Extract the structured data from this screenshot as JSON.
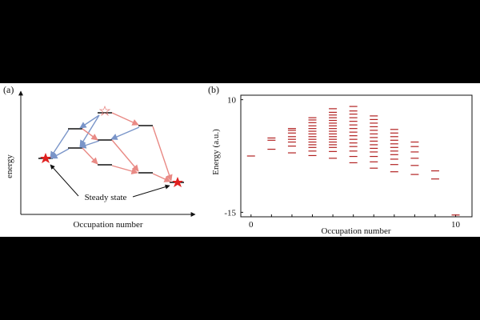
{
  "panel_a": {
    "label": "(a)",
    "ylabel": "energy",
    "xlabel": "Occupation number",
    "annotation": "Steady state"
  },
  "chart_data": {
    "type": "scatter",
    "label": "(b)",
    "xlabel": "Occupation number",
    "ylabel": "Energy (a.u.)",
    "xticks": [
      0,
      10
    ],
    "yticks": [
      10,
      -15
    ],
    "xlim": [
      -0.5,
      10.8
    ],
    "ylim": [
      -16,
      11
    ],
    "color": "#b22222",
    "series": [
      {
        "n": 0,
        "energies": [
          -2.5
        ]
      },
      {
        "n": 1,
        "energies": [
          1.5,
          1.0,
          -1.0
        ]
      },
      {
        "n": 2,
        "energies": [
          3.6,
          3.2,
          2.6,
          1.8,
          1.2,
          0.6,
          -0.3,
          -1.8
        ]
      },
      {
        "n": 3,
        "energies": [
          6.0,
          5.5,
          4.9,
          4.2,
          3.6,
          3.0,
          2.4,
          1.8,
          1.2,
          0.6,
          0.0,
          -0.6,
          -1.4,
          -2.4
        ]
      },
      {
        "n": 4,
        "energies": [
          8.0,
          7.2,
          6.6,
          6.0,
          5.4,
          4.8,
          4.2,
          3.6,
          3.0,
          2.4,
          1.8,
          1.2,
          0.6,
          0.0,
          -0.6,
          -1.5,
          -3.0
        ]
      },
      {
        "n": 5,
        "energies": [
          8.5,
          7.5,
          6.8,
          6.0,
          5.2,
          4.4,
          3.6,
          2.8,
          2.0,
          1.2,
          0.4,
          -0.4,
          -1.4,
          -2.6,
          -4.0
        ]
      },
      {
        "n": 6,
        "energies": [
          6.4,
          5.6,
          4.8,
          4.0,
          3.2,
          2.4,
          1.6,
          0.8,
          0.0,
          -0.8,
          -1.6,
          -2.6,
          -3.8,
          -5.2
        ]
      },
      {
        "n": 7,
        "energies": [
          3.4,
          2.6,
          1.8,
          1.0,
          0.2,
          -0.6,
          -1.4,
          -2.2,
          -3.2,
          -4.4,
          -6.0
        ]
      },
      {
        "n": 8,
        "energies": [
          0.6,
          -0.4,
          -1.6,
          -3.0,
          -4.6,
          -6.6
        ]
      },
      {
        "n": 9,
        "energies": [
          -5.8,
          -7.6
        ]
      },
      {
        "n": 10,
        "energies": [
          -15.6
        ]
      }
    ]
  }
}
